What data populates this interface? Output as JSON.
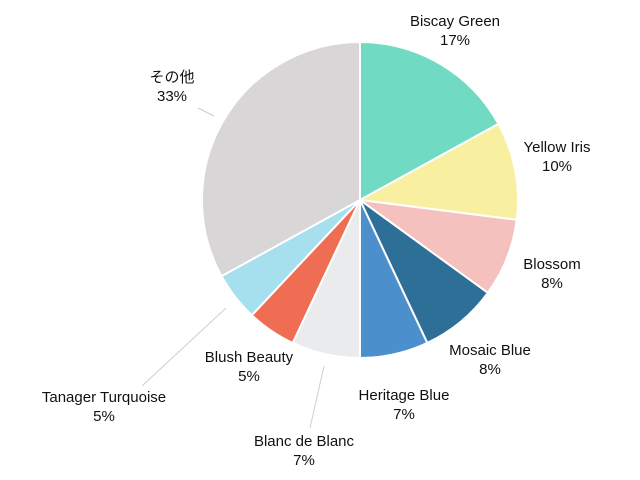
{
  "chart_data": {
    "type": "pie",
    "title": "",
    "slices": [
      {
        "label": "Biscay Green",
        "value_label": "17%",
        "value": 17,
        "color": "#70dbc2"
      },
      {
        "label": "Yellow Iris",
        "value_label": "10%",
        "value": 10,
        "color": "#f8f0a0"
      },
      {
        "label": "Blossom",
        "value_label": "8%",
        "value": 8,
        "color": "#f4c1bf"
      },
      {
        "label": "Mosaic Blue",
        "value_label": "8%",
        "value": 8,
        "color": "#2e6f97"
      },
      {
        "label": "Heritage Blue",
        "value_label": "7%",
        "value": 7,
        "color": "#4c8fcd"
      },
      {
        "label": "Blanc de Blanc",
        "value_label": "7%",
        "value": 7,
        "color": "#eaebed"
      },
      {
        "label": "Blush Beauty",
        "value_label": "5%",
        "value": 5,
        "color": "#ef6e53"
      },
      {
        "label": "Tanager Turquoise",
        "value_label": "5%",
        "value": 5,
        "color": "#a6e0ef"
      },
      {
        "label": "その他",
        "value_label": "33%",
        "value": 33,
        "color": "#d8d6d7"
      }
    ]
  }
}
